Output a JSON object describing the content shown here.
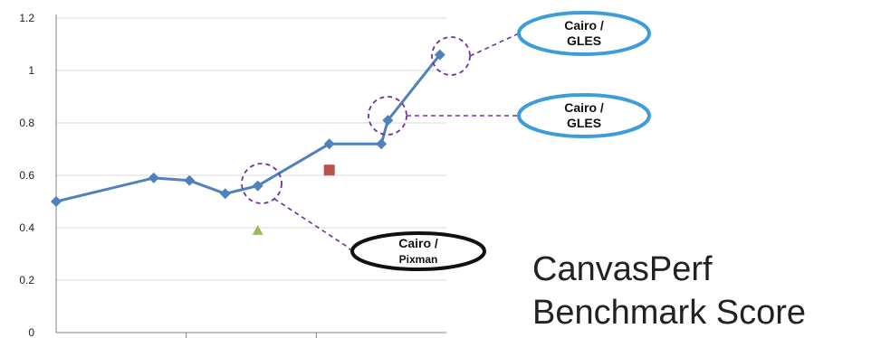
{
  "chart_data": {
    "type": "line",
    "title_lines": [
      "CanvasPerf",
      "Benchmark Score"
    ],
    "xlabel": "",
    "ylabel": "",
    "x_range": [
      0,
      1.2
    ],
    "y_range": [
      0,
      1.2
    ],
    "y_ticks": [
      0,
      0.2,
      0.4,
      0.6,
      0.8,
      1,
      1.2
    ],
    "y_tick_labels": [
      "0",
      "0.2",
      "0.4",
      "0.6",
      "0.8",
      "1",
      "1.2"
    ],
    "x_tick_marks": [
      0.4,
      0.8
    ],
    "gridlines": true,
    "legend": "none",
    "series": [
      {
        "marker": "diamond",
        "color": "#4F81BD",
        "points": [
          {
            "x": 0.0,
            "y": 0.5
          },
          {
            "x": 0.3,
            "y": 0.59
          },
          {
            "x": 0.41,
            "y": 0.58
          },
          {
            "x": 0.52,
            "y": 0.53
          },
          {
            "x": 0.62,
            "y": 0.56
          },
          {
            "x": 0.84,
            "y": 0.72
          },
          {
            "x": 1.0,
            "y": 0.72
          },
          {
            "x": 1.02,
            "y": 0.81
          },
          {
            "x": 1.18,
            "y": 1.06
          }
        ]
      },
      {
        "marker": "square",
        "color": "#C0504D",
        "points": [
          {
            "x": 0.84,
            "y": 0.62
          }
        ]
      },
      {
        "marker": "triangle",
        "color": "#9BBB59",
        "points": [
          {
            "x": 0.62,
            "y": 0.39
          }
        ]
      }
    ],
    "annotations": [
      {
        "line1": "Cairo /",
        "line2": "GLES",
        "point": {
          "x": 1.18,
          "y": 1.06
        },
        "bubble_color": "#3D9DDB"
      },
      {
        "line1": "Cairo /",
        "line2": "GLES",
        "point": {
          "x": 1.02,
          "y": 0.81
        },
        "bubble_color": "#3D9DDB"
      },
      {
        "line1": "Cairo /",
        "line2": "Pixman",
        "point": {
          "x": 0.62,
          "y": 0.56
        },
        "bubble_color": "#111111"
      }
    ],
    "colors": {
      "gridline": "#D9D9D9",
      "axis": "#808080",
      "tick_text": "#222222",
      "callout": "#7030A0"
    }
  }
}
